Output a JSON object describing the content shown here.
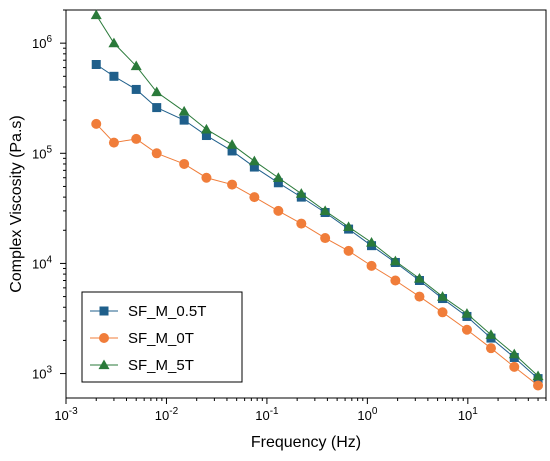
{
  "chart_data": {
    "type": "line",
    "title": "",
    "xlabel": "Frequency (Hz)",
    "ylabel": "Complex Viscosity (Pa.s)",
    "x_scale": "log",
    "y_scale": "log",
    "xlim": [
      0.001,
      60
    ],
    "ylim": [
      600,
      2000000
    ],
    "x_ticks": [
      {
        "value": 0.001,
        "base": "10",
        "exp": "-3"
      },
      {
        "value": 0.01,
        "base": "10",
        "exp": "-2"
      },
      {
        "value": 0.1,
        "base": "10",
        "exp": "-1"
      },
      {
        "value": 1,
        "base": "10",
        "exp": "0"
      },
      {
        "value": 10,
        "base": "10",
        "exp": "1"
      }
    ],
    "y_ticks": [
      {
        "value": 1000,
        "base": "10",
        "exp": "3"
      },
      {
        "value": 10000,
        "base": "10",
        "exp": "4"
      },
      {
        "value": 100000,
        "base": "10",
        "exp": "5"
      },
      {
        "value": 1000000,
        "base": "10",
        "exp": "6"
      }
    ],
    "grid": false,
    "legend_position": "bottom-left",
    "x": [
      0.002,
      0.003,
      0.005,
      0.008,
      0.015,
      0.025,
      0.045,
      0.075,
      0.13,
      0.22,
      0.38,
      0.65,
      1.1,
      1.9,
      3.3,
      5.6,
      9.8,
      17,
      29,
      50
    ],
    "series": [
      {
        "name": "SF_M_0.5T",
        "color": "#1f5f8b",
        "marker": "square",
        "values": [
          640000,
          500000,
          380000,
          260000,
          200000,
          145000,
          105000,
          75000,
          54000,
          40000,
          29000,
          20500,
          14500,
          10200,
          7000,
          4800,
          3300,
          2100,
          1400,
          900
        ]
      },
      {
        "name": "SF_M_0T",
        "color": "#f07d3a",
        "marker": "circle",
        "values": [
          185000,
          125000,
          135000,
          100000,
          80000,
          60000,
          52000,
          40000,
          30000,
          23000,
          17000,
          13000,
          9500,
          7000,
          5000,
          3600,
          2500,
          1700,
          1150,
          780
        ]
      },
      {
        "name": "SF_M_5T",
        "color": "#2a7a3a",
        "marker": "triangle",
        "values": [
          1800000,
          1000000,
          620000,
          360000,
          240000,
          165000,
          120000,
          85000,
          60000,
          43000,
          30000,
          21500,
          15500,
          10500,
          7300,
          5000,
          3500,
          2250,
          1500,
          950
        ]
      }
    ]
  }
}
